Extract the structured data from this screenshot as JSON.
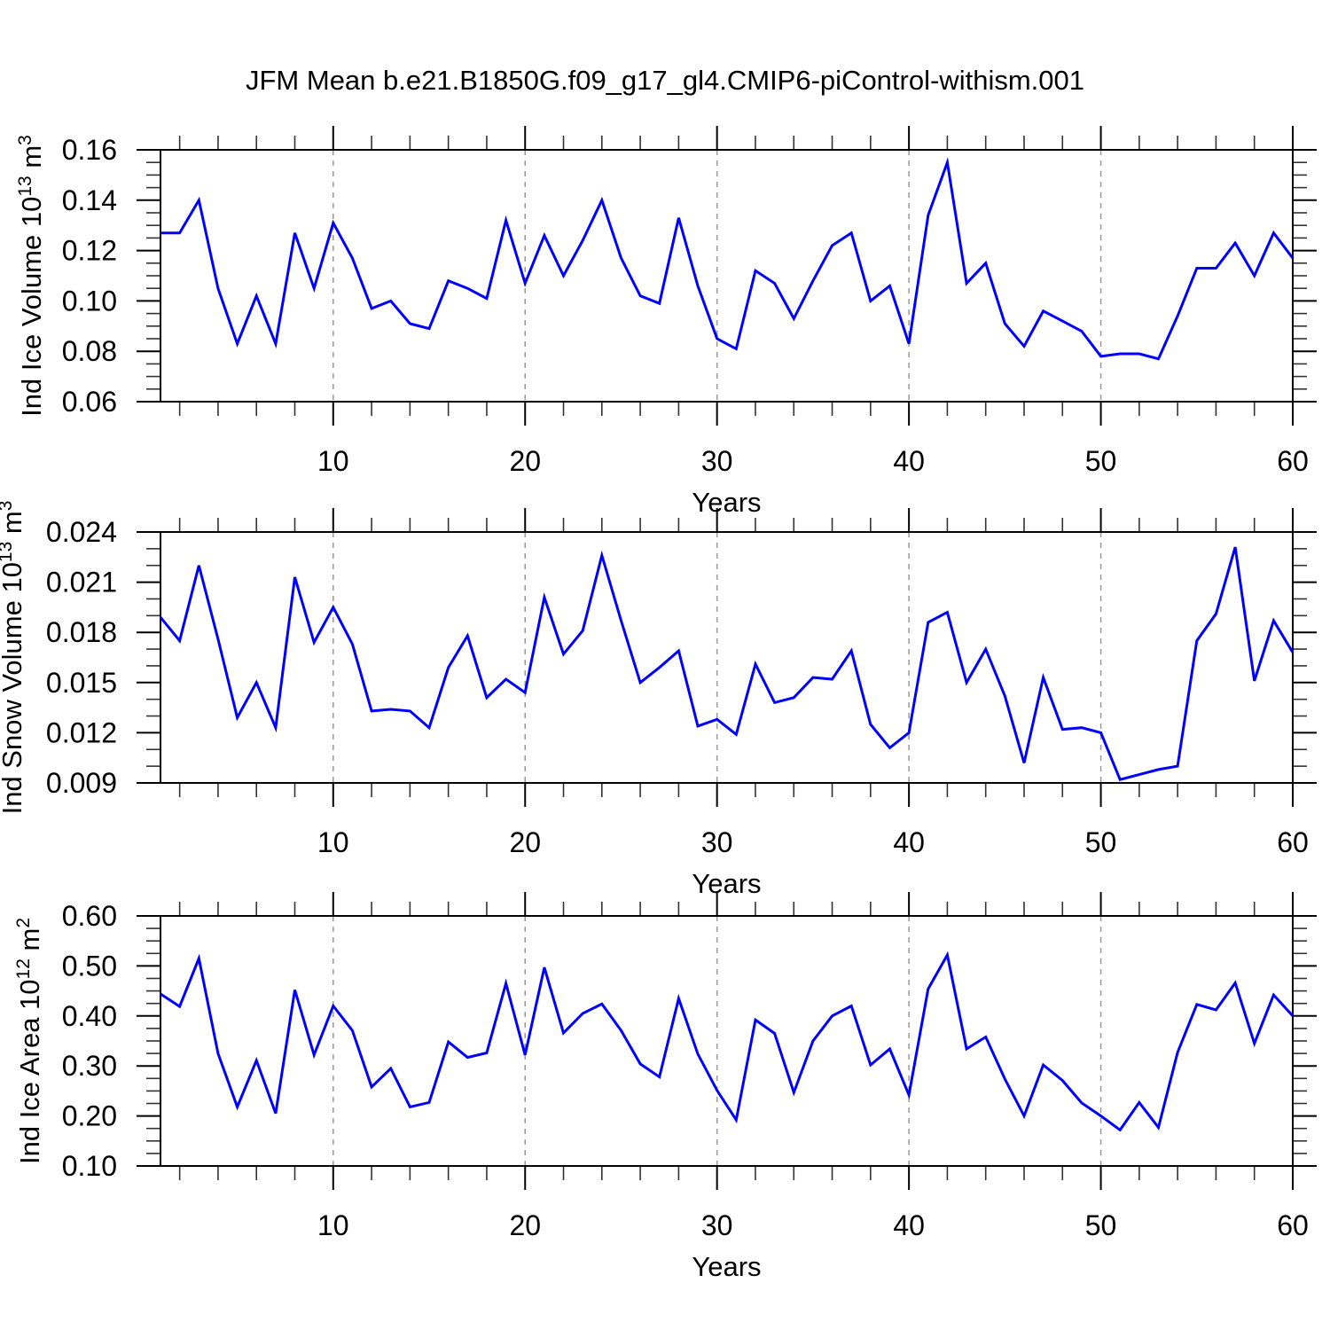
{
  "title": "JFM Mean b.e21.B1850G.f09_g17_gl4.CMIP6-piControl-withism.001",
  "chart_data": {
    "type": "line",
    "title": "JFM Mean b.e21.B1850G.f09_g17_gl4.CMIP6-piControl-withism.001",
    "xlabel": "Years",
    "xlim": [
      1,
      60
    ],
    "x": [
      1,
      2,
      3,
      4,
      5,
      6,
      7,
      8,
      9,
      10,
      11,
      12,
      13,
      14,
      15,
      16,
      17,
      18,
      19,
      20,
      21,
      22,
      23,
      24,
      25,
      26,
      27,
      28,
      29,
      30,
      31,
      32,
      33,
      34,
      35,
      36,
      37,
      38,
      39,
      40,
      41,
      42,
      43,
      44,
      45,
      46,
      47,
      48,
      49,
      50,
      51,
      52,
      53,
      54,
      55,
      56,
      57,
      58,
      59,
      60
    ],
    "x_tick_values": [
      10,
      20,
      30,
      40,
      50,
      60
    ],
    "x_tick_labels": [
      "10",
      "20",
      "30",
      "40",
      "50",
      "60"
    ],
    "x_minor_step": 2,
    "grid_x_values": [
      10,
      20,
      30,
      40,
      50
    ],
    "grid_on": true,
    "legend": "none",
    "line_color": "#0000ff",
    "grid_color": "#999999",
    "panels": [
      {
        "name": "ice-volume",
        "ylabel_text": "Ind Ice Volume 10^13 m^3",
        "ylabel_parts": [
          {
            "t": "Ind Ice Volume 10"
          },
          {
            "t": "13",
            "sup": true
          },
          {
            "t": " m"
          },
          {
            "t": "3",
            "sup": true
          }
        ],
        "ylim": [
          0.06,
          0.16
        ],
        "y_major_step": 0.02,
        "y_minor_step": 0.005,
        "y_tick_labels": [
          "0.06",
          "0.08",
          "0.10",
          "0.12",
          "0.14",
          "0.16"
        ],
        "values": [
          0.127,
          0.127,
          0.14,
          0.105,
          0.083,
          0.102,
          0.083,
          0.127,
          0.105,
          0.131,
          0.117,
          0.097,
          0.1,
          0.091,
          0.089,
          0.108,
          0.105,
          0.101,
          0.132,
          0.107,
          0.126,
          0.11,
          0.124,
          0.14,
          0.117,
          0.102,
          0.099,
          0.133,
          0.106,
          0.085,
          0.081,
          0.112,
          0.107,
          0.093,
          0.108,
          0.122,
          0.127,
          0.1,
          0.106,
          0.083,
          0.134,
          0.155,
          0.107,
          0.115,
          0.091,
          0.082,
          0.096,
          0.092,
          0.088,
          0.078,
          0.079,
          0.079,
          0.077,
          0.094,
          0.113,
          0.113,
          0.123,
          0.11,
          0.127,
          0.117
        ]
      },
      {
        "name": "snow-volume",
        "ylabel_text": "Ind Snow Volume 10^13 m^3",
        "ylabel_parts": [
          {
            "t": "Ind Snow Volume 10"
          },
          {
            "t": "13",
            "sup": true
          },
          {
            "t": " m"
          },
          {
            "t": "3",
            "sup": true
          }
        ],
        "ylim": [
          0.009,
          0.024
        ],
        "y_major_step": 0.003,
        "y_minor_step": 0.001,
        "y_tick_labels": [
          "0.009",
          "0.012",
          "0.015",
          "0.018",
          "0.021",
          "0.024"
        ],
        "values": [
          0.0189,
          0.0175,
          0.022,
          0.0176,
          0.0129,
          0.015,
          0.0123,
          0.0213,
          0.0174,
          0.0195,
          0.0173,
          0.0133,
          0.0134,
          0.0133,
          0.0123,
          0.0159,
          0.0178,
          0.0141,
          0.0152,
          0.0144,
          0.0201,
          0.0167,
          0.0181,
          0.0226,
          0.0187,
          0.015,
          0.0159,
          0.0169,
          0.0124,
          0.0128,
          0.0119,
          0.0161,
          0.0138,
          0.0141,
          0.0153,
          0.0152,
          0.0169,
          0.0125,
          0.0111,
          0.012,
          0.0186,
          0.0192,
          0.015,
          0.017,
          0.0142,
          0.0102,
          0.0153,
          0.0122,
          0.0123,
          0.012,
          0.0092,
          0.0095,
          0.0098,
          0.01,
          0.0175,
          0.0191,
          0.0231,
          0.0151,
          0.0187,
          0.0168
        ]
      },
      {
        "name": "ice-area",
        "ylabel_text": "Ind Ice Area 10^12 m^2",
        "ylabel_parts": [
          {
            "t": "Ind Ice Area 10"
          },
          {
            "t": "12",
            "sup": true
          },
          {
            "t": " m"
          },
          {
            "t": "2",
            "sup": true
          }
        ],
        "ylim": [
          0.1,
          0.6
        ],
        "y_major_step": 0.1,
        "y_minor_step": 0.025,
        "y_tick_labels": [
          "0.10",
          "0.20",
          "0.30",
          "0.40",
          "0.50",
          "0.60"
        ],
        "values": [
          0.444,
          0.419,
          0.515,
          0.325,
          0.218,
          0.311,
          0.205,
          0.452,
          0.322,
          0.42,
          0.371,
          0.258,
          0.295,
          0.218,
          0.227,
          0.348,
          0.317,
          0.326,
          0.465,
          0.322,
          0.497,
          0.366,
          0.405,
          0.424,
          0.371,
          0.304,
          0.278,
          0.435,
          0.324,
          0.251,
          0.192,
          0.392,
          0.365,
          0.247,
          0.35,
          0.4,
          0.42,
          0.302,
          0.334,
          0.242,
          0.454,
          0.522,
          0.334,
          0.358,
          0.274,
          0.2,
          0.302,
          0.271,
          0.226,
          0.2,
          0.172,
          0.227,
          0.177,
          0.327,
          0.423,
          0.412,
          0.466,
          0.345,
          0.442,
          0.4
        ]
      }
    ]
  }
}
